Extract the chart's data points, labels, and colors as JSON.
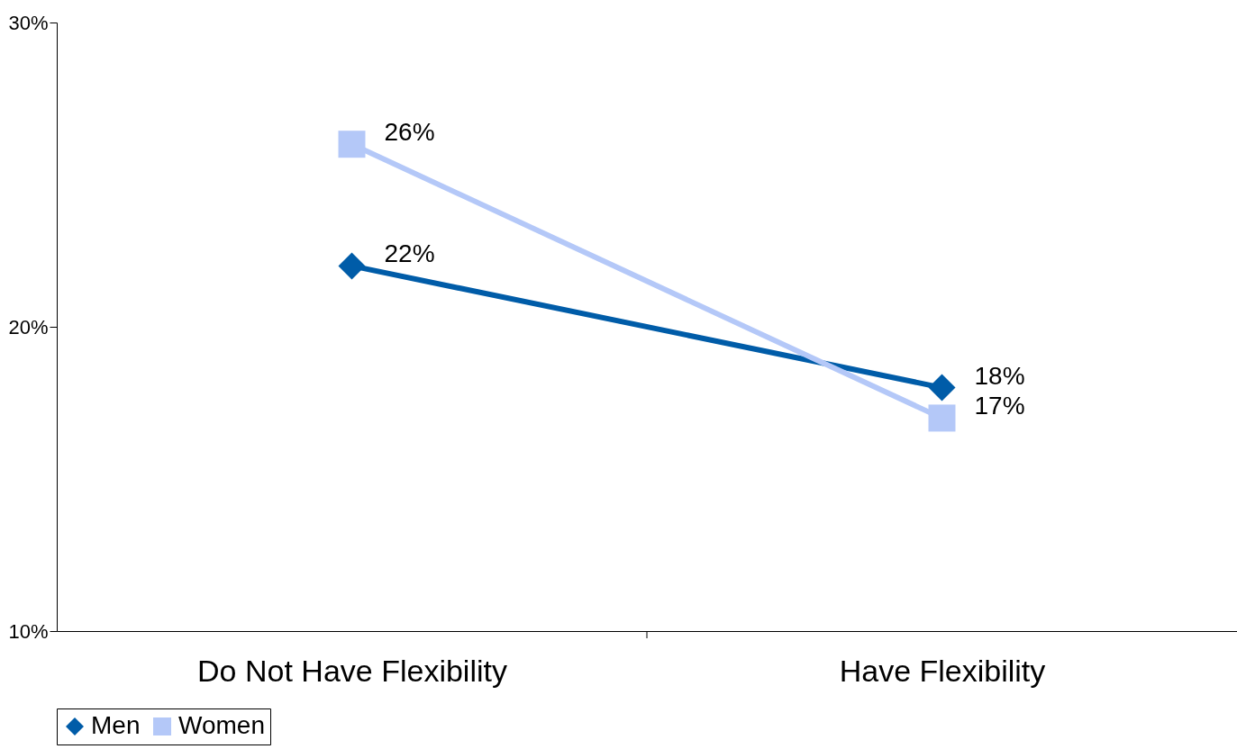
{
  "chart_data": {
    "type": "line",
    "categories": [
      "Do Not Have Flexibility",
      "Have Flexibility"
    ],
    "series": [
      {
        "name": "Men",
        "color": "#005ca8",
        "marker": "diamond",
        "values": [
          22,
          18
        ],
        "value_labels": [
          "22%",
          "18%"
        ]
      },
      {
        "name": "Women",
        "color": "#b4c8f8",
        "marker": "square",
        "values": [
          26,
          17
        ],
        "value_labels": [
          "26%",
          "17%"
        ]
      }
    ],
    "ylim": [
      10,
      30
    ],
    "yticks": [
      {
        "value": 10,
        "label": "10%"
      },
      {
        "value": 20,
        "label": "20%"
      },
      {
        "value": 30,
        "label": "30%"
      }
    ],
    "grid": false,
    "legend": "bottom",
    "line_style": "solid"
  }
}
